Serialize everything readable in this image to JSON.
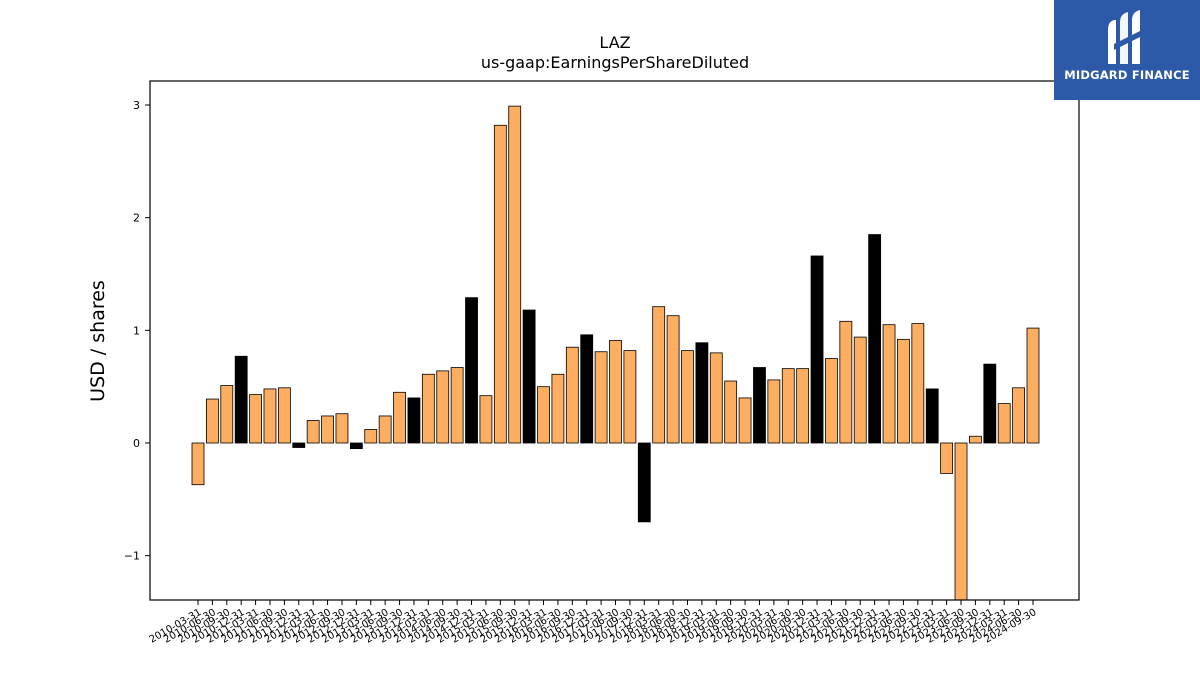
{
  "brand": {
    "name": "MIDGARD FINANCE",
    "logo_icon": "midgard-m-logo-icon",
    "background": "#2d5aa8"
  },
  "chart_data": {
    "type": "bar",
    "title": "LAZ",
    "subtitle": "us-gaap:EarningsPerShareDiluted",
    "xlabel": "",
    "ylabel": "USD / shares",
    "ylim": [
      -1.4,
      3.2
    ],
    "yticks": [
      -1,
      0,
      1,
      2,
      3
    ],
    "ytick_labels": [
      "−1",
      "0",
      "1",
      "2",
      "3"
    ],
    "grid": false,
    "colors": {
      "quarterly": "#fdae61",
      "annual": "#000000",
      "edge": "#000000"
    },
    "categories": [
      "2010-03-31",
      "2010-06-30",
      "2010-09-30",
      "2010-12-31",
      "2011-03-31",
      "2011-06-30",
      "2011-09-30",
      "2011-12-31",
      "2012-03-31",
      "2012-06-30",
      "2012-09-30",
      "2012-12-31",
      "2013-03-31",
      "2013-06-30",
      "2013-09-30",
      "2013-12-31",
      "2014-03-31",
      "2014-06-30",
      "2014-09-30",
      "2014-12-31",
      "2015-03-31",
      "2015-06-30",
      "2015-09-30",
      "2015-12-31",
      "2016-03-31",
      "2016-06-30",
      "2016-09-30",
      "2016-12-31",
      "2017-03-31",
      "2017-06-30",
      "2017-09-30",
      "2017-12-31",
      "2018-03-31",
      "2018-06-30",
      "2018-09-30",
      "2018-12-31",
      "2019-03-31",
      "2019-06-30",
      "2019-09-30",
      "2019-12-31",
      "2020-03-31",
      "2020-06-30",
      "2020-09-30",
      "2020-12-31",
      "2021-03-31",
      "2021-06-30",
      "2021-09-30",
      "2021-12-31",
      "2022-03-31",
      "2022-06-30",
      "2022-09-30",
      "2022-12-31",
      "2023-03-31",
      "2023-06-30",
      "2023-09-30",
      "2023-12-31",
      "2024-03-31",
      "2024-06-30",
      "2024-09-30"
    ],
    "values": [
      -0.37,
      0.39,
      0.51,
      0.77,
      0.43,
      0.48,
      0.49,
      -0.04,
      0.2,
      0.24,
      0.26,
      -0.05,
      0.12,
      0.24,
      0.45,
      0.4,
      0.61,
      0.64,
      0.67,
      1.29,
      0.42,
      2.82,
      2.99,
      1.18,
      0.5,
      0.61,
      0.85,
      0.96,
      0.81,
      0.91,
      0.82,
      -0.7,
      1.21,
      1.13,
      0.82,
      0.89,
      0.8,
      0.55,
      0.4,
      0.67,
      0.56,
      0.66,
      0.66,
      1.66,
      0.75,
      1.08,
      0.94,
      1.85,
      1.05,
      0.92,
      1.06,
      0.48,
      -0.27,
      -1.45,
      0.06,
      0.7,
      0.35,
      0.49,
      1.02
    ],
    "series_type": [
      "q",
      "q",
      "q",
      "a",
      "q",
      "q",
      "q",
      "a",
      "q",
      "q",
      "q",
      "a",
      "q",
      "q",
      "q",
      "a",
      "q",
      "q",
      "q",
      "a",
      "q",
      "q",
      "q",
      "a",
      "q",
      "q",
      "q",
      "a",
      "q",
      "q",
      "q",
      "a",
      "q",
      "q",
      "q",
      "a",
      "q",
      "q",
      "q",
      "a",
      "q",
      "q",
      "q",
      "a",
      "q",
      "q",
      "q",
      "a",
      "q",
      "q",
      "q",
      "a",
      "q",
      "q",
      "q",
      "a",
      "q",
      "q",
      "q"
    ]
  }
}
